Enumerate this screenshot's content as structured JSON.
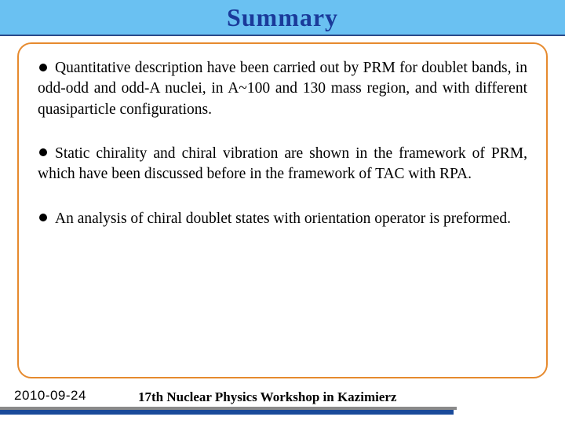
{
  "title": "Summary",
  "bullets": [
    "Quantitative description have been carried out by PRM for doublet bands, in odd-odd and odd-A nuclei, in A~100 and 130 mass region, and with different quasiparticle configurations.",
    "Static chirality and chiral vibration are shown in the framework of PRM, which have been discussed before in the framework of TAC with RPA.",
    "An analysis of chiral doublet states with orientation operator is preformed."
  ],
  "footer": {
    "date": "2010-09-24",
    "conference": "17th Nuclear Physics Workshop in Kazimierz"
  },
  "colors": {
    "title_bar_bg": "#6ac1f2",
    "title_text": "#1a3a9a",
    "frame_border": "#e68a2e",
    "footer_blue": "#1a4a9a",
    "footer_gray": "#8a8a8a"
  }
}
